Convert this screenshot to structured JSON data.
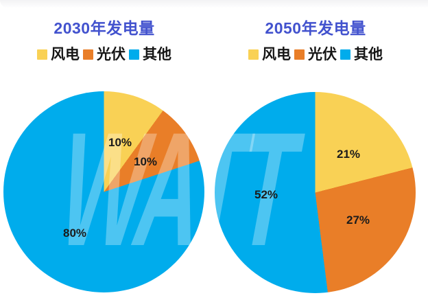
{
  "page": {
    "background": "#ffffff"
  },
  "watermark": {
    "text": "WATT"
  },
  "ui": {
    "title_color": "#4252CE",
    "label_color": "#1b1b1b",
    "legend_text_color": "#151515",
    "wind_color": "#F9D155",
    "solar_color": "#E97E28",
    "other_color": "#00ACEC"
  },
  "chart_data": [
    {
      "type": "pie",
      "title": "2030年发电量",
      "unit": "%",
      "start_angle_deg": 0,
      "direction": "clockwise",
      "legend_position": "top",
      "slices": [
        {
          "label": "风电",
          "value": 10,
          "pct_label": "10%",
          "color": "#F9D155"
        },
        {
          "label": "光伏",
          "value": 10,
          "pct_label": "10%",
          "color": "#E97E28"
        },
        {
          "label": "其他",
          "value": 80,
          "pct_label": "80%",
          "color": "#00ACEC"
        }
      ]
    },
    {
      "type": "pie",
      "title": "2050年发电量",
      "unit": "%",
      "start_angle_deg": 0,
      "direction": "clockwise",
      "legend_position": "top",
      "slices": [
        {
          "label": "风电",
          "value": 21,
          "pct_label": "21%",
          "color": "#F9D155"
        },
        {
          "label": "光伏",
          "value": 27,
          "pct_label": "27%",
          "color": "#E97E28"
        },
        {
          "label": "其他",
          "value": 52,
          "pct_label": "52%",
          "color": "#00ACEC"
        }
      ]
    }
  ]
}
